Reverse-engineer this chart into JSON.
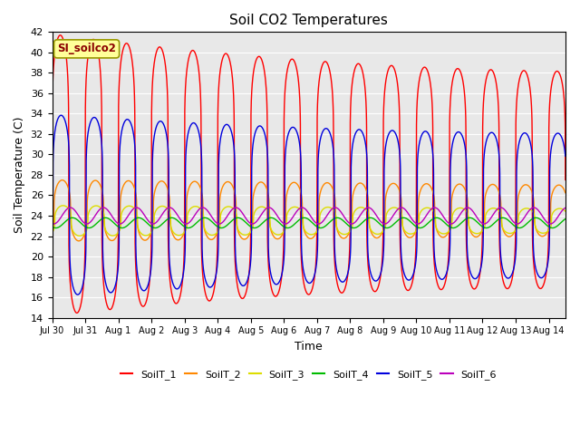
{
  "title": "Soil CO2 Temperatures",
  "xlabel": "Time",
  "ylabel": "Soil Temperature (C)",
  "ylim": [
    14,
    42
  ],
  "yticks": [
    14,
    16,
    18,
    20,
    22,
    24,
    26,
    28,
    30,
    32,
    34,
    36,
    38,
    40,
    42
  ],
  "start_day": 0,
  "end_day": 15.5,
  "n_points": 5000,
  "period": 1.0,
  "xtick_labels": [
    "Jul 30",
    "Jul 31",
    "Aug 1",
    "Aug 2",
    "Aug 3",
    "Aug 4",
    "Aug 5",
    "Aug 6",
    "Aug 7",
    "Aug 8",
    "Aug 9",
    "Aug 10",
    "Aug 11",
    "Aug 12",
    "Aug 13",
    "Aug 14"
  ],
  "annotation_text": "SI_soilco2",
  "bg_color": "#e8e8e8",
  "legend_colors": [
    "#ff0000",
    "#ff8800",
    "#dddd00",
    "#00bb00",
    "#0000dd",
    "#bb00bb"
  ],
  "legend_labels": [
    "SoilT_1",
    "SoilT_2",
    "SoilT_3",
    "SoilT_4",
    "SoilT_5",
    "SoilT_6"
  ]
}
